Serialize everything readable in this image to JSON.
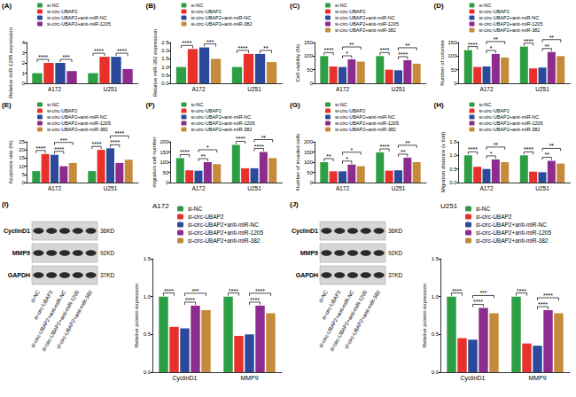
{
  "chart_data": [
    {
      "type": "bar",
      "panel": "(A)",
      "y_label": "Relative miR-1205 expression",
      "categories": [
        "A172",
        "U251"
      ],
      "ylim": [
        0,
        4
      ],
      "yticks": [
        0,
        1,
        2,
        3,
        4
      ],
      "grid": false,
      "legend": "upper right",
      "series": [
        {
          "name": "si-NC",
          "color": "#2e9e44",
          "values": [
            1.0,
            1.0
          ]
        },
        {
          "name": "si-circ-UBAP2",
          "color": "#e8312b",
          "values": [
            2.0,
            2.6
          ]
        },
        {
          "name": "si-circ-UBAP2+anti-miR-NC",
          "color": "#2b4a9c",
          "values": [
            2.0,
            2.6
          ]
        },
        {
          "name": "si-circ-UBAP2+anti-miR-1205",
          "color": "#8e2c8e",
          "values": [
            1.2,
            1.4
          ]
        }
      ],
      "significance": [
        {
          "category": "A172",
          "from": 0,
          "to": 1,
          "label": "****"
        },
        {
          "category": "A172",
          "from": 2,
          "to": 3,
          "label": "***"
        },
        {
          "category": "U251",
          "from": 0,
          "to": 1,
          "label": "****"
        },
        {
          "category": "U251",
          "from": 2,
          "to": 3,
          "label": "****"
        }
      ]
    },
    {
      "type": "bar",
      "panel": "(B)",
      "y_label": "Relative miR-382 expression",
      "categories": [
        "A172",
        "U251"
      ],
      "ylim": [
        0,
        2.5
      ],
      "yticks": [
        {
          "value": 0,
          "label": "0.0"
        },
        0.5,
        {
          "value": 1,
          "label": "1.0"
        },
        1.5,
        {
          "value": 2,
          "label": "2.0"
        },
        2.5
      ],
      "grid": false,
      "legend": "upper right",
      "series": [
        {
          "name": "si-NC",
          "color": "#2e9e44",
          "values": [
            1.0,
            1.0
          ]
        },
        {
          "name": "si-circ-UBAP2",
          "color": "#e8312b",
          "values": [
            2.1,
            1.8
          ]
        },
        {
          "name": "si-circ-UBAP2+anti-miR-NC",
          "color": "#2b4a9c",
          "values": [
            2.2,
            1.8
          ]
        },
        {
          "name": "si-circ-UBAP2+anti-miR-382",
          "color": "#c58a3a",
          "values": [
            1.5,
            1.3
          ]
        }
      ],
      "significance": [
        {
          "category": "A172",
          "from": 0,
          "to": 1,
          "label": "****"
        },
        {
          "category": "A172",
          "from": 2,
          "to": 3,
          "label": "***"
        },
        {
          "category": "U251",
          "from": 0,
          "to": 1,
          "label": "****"
        },
        {
          "category": "U251",
          "from": 2,
          "to": 3,
          "label": "**"
        }
      ]
    },
    {
      "type": "bar",
      "panel": "(C)",
      "y_label": "Cell viability (%)",
      "categories": [
        "A172",
        "U251"
      ],
      "ylim": [
        0,
        150
      ],
      "yticks": [
        0,
        50,
        100,
        150
      ],
      "grid": false,
      "legend": "upper right",
      "series": [
        {
          "name": "si-NC",
          "color": "#2e9e44",
          "values": [
            100,
            100
          ]
        },
        {
          "name": "si-circ-UBAP2",
          "color": "#e8312b",
          "values": [
            62,
            50
          ]
        },
        {
          "name": "si-circ-UBAP2+anti-miR-NC",
          "color": "#2b4a9c",
          "values": [
            60,
            48
          ]
        },
        {
          "name": "si-circ-UBAP2+anti-miR-1205",
          "color": "#8e2c8e",
          "values": [
            88,
            85
          ]
        },
        {
          "name": "si-circ-UBAP2+anti-miR-382",
          "color": "#c58a3a",
          "values": [
            80,
            72
          ]
        }
      ],
      "significance": [
        {
          "category": "A172",
          "from": 0,
          "to": 1,
          "label": "****"
        },
        {
          "category": "A172",
          "from": 2,
          "to": 3,
          "label": "*"
        },
        {
          "category": "A172",
          "from": 2,
          "to": 4,
          "label": "**"
        },
        {
          "category": "U251",
          "from": 0,
          "to": 1,
          "label": "****"
        },
        {
          "category": "U251",
          "from": 2,
          "to": 3,
          "label": "****"
        },
        {
          "category": "U251",
          "from": 2,
          "to": 4,
          "label": "**"
        }
      ]
    },
    {
      "type": "bar",
      "panel": "(D)",
      "y_label": "Number of colonies",
      "categories": [
        "A172",
        "U251"
      ],
      "ylim": [
        0,
        150
      ],
      "yticks": [
        0,
        50,
        100,
        150
      ],
      "grid": false,
      "legend": "upper right",
      "series": [
        {
          "name": "si-NC",
          "color": "#2e9e44",
          "values": [
            122,
            135
          ]
        },
        {
          "name": "si-circ-UBAP2",
          "color": "#e8312b",
          "values": [
            60,
            55
          ]
        },
        {
          "name": "si-circ-UBAP2+anti-miR-NC",
          "color": "#2b4a9c",
          "values": [
            62,
            58
          ]
        },
        {
          "name": "si-circ-UBAP2+anti-miR-1205",
          "color": "#8e2c8e",
          "values": [
            108,
            115
          ]
        },
        {
          "name": "si-circ-UBAP2+anti-miR-382",
          "color": "#c58a3a",
          "values": [
            95,
            100
          ]
        }
      ],
      "significance": [
        {
          "category": "A172",
          "from": 0,
          "to": 1,
          "label": "****"
        },
        {
          "category": "A172",
          "from": 2,
          "to": 3,
          "label": "*"
        },
        {
          "category": "A172",
          "from": 2,
          "to": 4,
          "label": "**"
        },
        {
          "category": "U251",
          "from": 0,
          "to": 1,
          "label": "****"
        },
        {
          "category": "U251",
          "from": 2,
          "to": 3,
          "label": "**"
        },
        {
          "category": "U251",
          "from": 2,
          "to": 4,
          "label": "**"
        }
      ]
    },
    {
      "type": "bar",
      "panel": "(E)",
      "y_label": "Apoptosis rate (%)",
      "categories": [
        "A172",
        "U251"
      ],
      "ylim": [
        0,
        25
      ],
      "yticks": [
        0,
        5,
        10,
        15,
        20,
        25
      ],
      "grid": false,
      "legend": "upper right",
      "series": [
        {
          "name": "si-NC",
          "color": "#2e9e44",
          "values": [
            7,
            7
          ]
        },
        {
          "name": "si-circ-UBAP2",
          "color": "#e8312b",
          "values": [
            17.5,
            20
          ]
        },
        {
          "name": "si-circ-UBAP2+anti-miR-NC",
          "color": "#2b4a9c",
          "values": [
            17,
            21
          ]
        },
        {
          "name": "si-circ-UBAP2+anti-miR-1205",
          "color": "#8e2c8e",
          "values": [
            10,
            12
          ]
        },
        {
          "name": "si-circ-UBAP2+anti-miR-382",
          "color": "#c58a3a",
          "values": [
            12,
            14
          ]
        }
      ],
      "significance": [
        {
          "category": "A172",
          "from": 0,
          "to": 1,
          "label": "****"
        },
        {
          "category": "A172",
          "from": 2,
          "to": 3,
          "label": "****"
        },
        {
          "category": "A172",
          "from": 2,
          "to": 4,
          "label": "***"
        },
        {
          "category": "U251",
          "from": 0,
          "to": 1,
          "label": "****"
        },
        {
          "category": "U251",
          "from": 2,
          "to": 3,
          "label": "****"
        },
        {
          "category": "U251",
          "from": 2,
          "to": 4,
          "label": "****"
        }
      ]
    },
    {
      "type": "bar",
      "panel": "(F)",
      "y_label": "migration cell number",
      "categories": [
        "A172",
        "U251"
      ],
      "ylim": [
        0,
        200
      ],
      "yticks": [
        0,
        50,
        100,
        150,
        200
      ],
      "grid": false,
      "legend": "upper right",
      "series": [
        {
          "name": "si-NC",
          "color": "#2e9e44",
          "values": [
            120,
            185
          ]
        },
        {
          "name": "si-circ-UBAP2",
          "color": "#e8312b",
          "values": [
            60,
            70
          ]
        },
        {
          "name": "si-circ-UBAP2+anti-miR-NC",
          "color": "#2b4a9c",
          "values": [
            58,
            70
          ]
        },
        {
          "name": "si-circ-UBAP2+anti-miR-1205",
          "color": "#8e2c8e",
          "values": [
            100,
            150
          ]
        },
        {
          "name": "si-circ-UBAP2+anti-miR-382",
          "color": "#c58a3a",
          "values": [
            90,
            120
          ]
        }
      ],
      "significance": [
        {
          "category": "A172",
          "from": 0,
          "to": 1,
          "label": "****"
        },
        {
          "category": "A172",
          "from": 2,
          "to": 3,
          "label": "**"
        },
        {
          "category": "A172",
          "from": 2,
          "to": 4,
          "label": "*"
        },
        {
          "category": "U251",
          "from": 0,
          "to": 1,
          "label": "****"
        },
        {
          "category": "U251",
          "from": 2,
          "to": 3,
          "label": "****"
        },
        {
          "category": "U251",
          "from": 2,
          "to": 4,
          "label": "**"
        }
      ]
    },
    {
      "type": "bar",
      "panel": "(G)",
      "y_label": "Number of invaded cells",
      "categories": [
        "A172",
        "U251"
      ],
      "ylim": [
        0,
        200
      ],
      "yticks": [
        0,
        50,
        100,
        150,
        200
      ],
      "grid": false,
      "legend": "upper right",
      "series": [
        {
          "name": "si-NC",
          "color": "#2e9e44",
          "values": [
            100,
            148
          ]
        },
        {
          "name": "si-circ-UBAP2",
          "color": "#e8312b",
          "values": [
            55,
            58
          ]
        },
        {
          "name": "si-circ-UBAP2+anti-miR-NC",
          "color": "#2b4a9c",
          "values": [
            55,
            60
          ]
        },
        {
          "name": "si-circ-UBAP2+anti-miR-1205",
          "color": "#8e2c8e",
          "values": [
            88,
            122
          ]
        },
        {
          "name": "si-circ-UBAP2+anti-miR-382",
          "color": "#c58a3a",
          "values": [
            80,
            100
          ]
        }
      ],
      "significance": [
        {
          "category": "A172",
          "from": 0,
          "to": 1,
          "label": "**"
        },
        {
          "category": "A172",
          "from": 2,
          "to": 3,
          "label": "*"
        },
        {
          "category": "A172",
          "from": 2,
          "to": 4,
          "label": "*"
        },
        {
          "category": "U251",
          "from": 0,
          "to": 1,
          "label": "****"
        },
        {
          "category": "U251",
          "from": 2,
          "to": 3,
          "label": "**"
        },
        {
          "category": "U251",
          "from": 2,
          "to": 4,
          "label": "**"
        }
      ]
    },
    {
      "type": "bar",
      "panel": "(H)",
      "y_label": "Migration distance (x fold)",
      "categories": [
        "A172",
        "U251"
      ],
      "ylim": [
        0,
        1.5
      ],
      "yticks": [
        {
          "value": 0,
          "label": "0.0"
        },
        0.5,
        {
          "value": 1,
          "label": "1.0"
        },
        1.5
      ],
      "grid": false,
      "legend": "upper right",
      "series": [
        {
          "name": "si-NC",
          "color": "#2e9e44",
          "values": [
            1.0,
            1.0
          ]
        },
        {
          "name": "si-circ-UBAP2",
          "color": "#e8312b",
          "values": [
            0.58,
            0.4
          ]
        },
        {
          "name": "si-circ-UBAP2+anti-miR-NC",
          "color": "#2b4a9c",
          "values": [
            0.5,
            0.38
          ]
        },
        {
          "name": "si-circ-UBAP2+anti-miR-1205",
          "color": "#8e2c8e",
          "values": [
            0.85,
            0.8
          ]
        },
        {
          "name": "si-circ-UBAP2+anti-miR-382",
          "color": "#c58a3a",
          "values": [
            0.75,
            0.7
          ]
        }
      ],
      "significance": [
        {
          "category": "A172",
          "from": 0,
          "to": 1,
          "label": "****"
        },
        {
          "category": "A172",
          "from": 2,
          "to": 3,
          "label": "*"
        },
        {
          "category": "A172",
          "from": 2,
          "to": 4,
          "label": "**"
        },
        {
          "category": "U251",
          "from": 0,
          "to": 1,
          "label": "****"
        },
        {
          "category": "U251",
          "from": 2,
          "to": 3,
          "label": "**"
        },
        {
          "category": "U251",
          "from": 2,
          "to": 4,
          "label": "**"
        }
      ]
    },
    {
      "type": "bar",
      "panel": "(I)",
      "title": "A172",
      "y_label": "Relative protein expression",
      "categories": [
        "CyclinD1",
        "MMP9"
      ],
      "ylim": [
        0,
        1.5
      ],
      "yticks": [
        {
          "value": 0,
          "label": "0.0"
        },
        0.5,
        {
          "value": 1,
          "label": "1.0"
        },
        1.5
      ],
      "grid": false,
      "legend": "upper right",
      "series": [
        {
          "name": "si-NC",
          "color": "#2e9e44",
          "values": [
            1.0,
            1.0
          ]
        },
        {
          "name": "si-circ-UBAP2",
          "color": "#e8312b",
          "values": [
            0.6,
            0.48
          ]
        },
        {
          "name": "si-circ-UBAP2+anti-miR-NC",
          "color": "#2b4a9c",
          "values": [
            0.58,
            0.5
          ]
        },
        {
          "name": "si-circ-UBAP2+anti-miR-1205",
          "color": "#8e2c8e",
          "values": [
            0.88,
            0.88
          ]
        },
        {
          "name": "si-circ-UBAP2+anti-miR-382",
          "color": "#c58a3a",
          "values": [
            0.82,
            0.78
          ]
        }
      ],
      "significance": [
        {
          "category": "CyclinD1",
          "from": 0,
          "to": 1,
          "label": "****"
        },
        {
          "category": "CyclinD1",
          "from": 2,
          "to": 3,
          "label": "****"
        },
        {
          "category": "CyclinD1",
          "from": 2,
          "to": 4,
          "label": "***"
        },
        {
          "category": "MMP9",
          "from": 0,
          "to": 1,
          "label": "****"
        },
        {
          "category": "MMP9",
          "from": 2,
          "to": 3,
          "label": "****"
        },
        {
          "category": "MMP9",
          "from": 2,
          "to": 4,
          "label": "****"
        }
      ],
      "blot": [
        {
          "protein": "CyclinD1",
          "size": "36KD"
        },
        {
          "protein": "MMP9",
          "size": "92KD"
        },
        {
          "protein": "GAPDH",
          "size": "37KD"
        }
      ]
    },
    {
      "type": "bar",
      "panel": "(J)",
      "title": "U251",
      "y_label": "Relative protein expression",
      "categories": [
        "CyclinD1",
        "MMP9"
      ],
      "ylim": [
        0,
        1.5
      ],
      "yticks": [
        {
          "value": 0,
          "label": "0.0"
        },
        0.5,
        {
          "value": 1,
          "label": "1.0"
        },
        1.5
      ],
      "grid": false,
      "legend": "upper right",
      "series": [
        {
          "name": "si-NC",
          "color": "#2e9e44",
          "values": [
            1.0,
            1.0
          ]
        },
        {
          "name": "si-circ-UBAP2",
          "color": "#e8312b",
          "values": [
            0.45,
            0.38
          ]
        },
        {
          "name": "si-circ-UBAP2+anti-miR-NC",
          "color": "#2b4a9c",
          "values": [
            0.43,
            0.35
          ]
        },
        {
          "name": "si-circ-UBAP2+anti-miR-1205",
          "color": "#8e2c8e",
          "values": [
            0.85,
            0.82
          ]
        },
        {
          "name": "si-circ-UBAP2+anti-miR-382",
          "color": "#c58a3a",
          "values": [
            0.78,
            0.78
          ]
        }
      ],
      "significance": [
        {
          "category": "CyclinD1",
          "from": 0,
          "to": 1,
          "label": "****"
        },
        {
          "category": "CyclinD1",
          "from": 2,
          "to": 3,
          "label": "****"
        },
        {
          "category": "CyclinD1",
          "from": 2,
          "to": 4,
          "label": "***"
        },
        {
          "category": "MMP9",
          "from": 0,
          "to": 1,
          "label": "****"
        },
        {
          "category": "MMP9",
          "from": 2,
          "to": 3,
          "label": "****"
        },
        {
          "category": "MMP9",
          "from": 2,
          "to": 4,
          "label": "****"
        }
      ],
      "blot": [
        {
          "protein": "CyclinD1",
          "size": "36KD"
        },
        {
          "protein": "MMP9",
          "size": "92KD"
        },
        {
          "protein": "GAPDH",
          "size": "37KD"
        }
      ]
    }
  ]
}
